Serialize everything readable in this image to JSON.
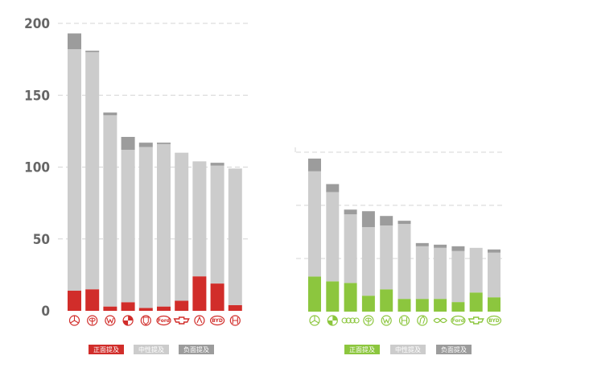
{
  "colors": {
    "positive_left": "#d12d2a",
    "positive_right": "#8cc63e",
    "neutral": "#cccccc",
    "negative": "#9c9c9c",
    "grid": "#d4d4d4",
    "axis_text": "#666666"
  },
  "chart_data": [
    {
      "type": "bar",
      "stacked": true,
      "title": "",
      "xlabel": "",
      "ylabel": "",
      "ylim": [
        0,
        200
      ],
      "yticks": [
        "0",
        "50",
        "100",
        "150",
        "200"
      ],
      "grid": true,
      "legend_position": "bottom",
      "categories": [
        "mercedes-benz-logo",
        "toyota-logo",
        "volkswagen-logo",
        "bmw-logo",
        "porsche-logo",
        "ford-logo",
        "chevrolet-logo",
        "geely-logo",
        "byd-logo",
        "honda-logo"
      ],
      "brand_labels": [
        "",
        "",
        "",
        "",
        "",
        "Ford",
        "",
        "",
        "BYD",
        ""
      ],
      "series": [
        {
          "name": "正面提及",
          "color": "#d12d2a",
          "values": [
            14,
            15,
            3,
            6,
            2,
            3,
            7,
            24,
            19,
            4
          ]
        },
        {
          "name": "中性提及",
          "color": "#cccccc",
          "values": [
            168,
            165,
            133,
            106,
            112,
            113,
            103,
            80,
            82,
            95
          ]
        },
        {
          "name": "负面提及",
          "color": "#9c9c9c",
          "values": [
            11,
            1,
            2,
            9,
            3,
            1,
            0,
            0,
            2,
            0
          ]
        }
      ]
    },
    {
      "type": "bar",
      "stacked": true,
      "title": "",
      "xlabel": "",
      "ylabel": "",
      "ylim": [
        0,
        100
      ],
      "grid": true,
      "legend_position": "bottom",
      "categories": [
        "mercedes-benz-logo",
        "bmw-logo",
        "audi-logo",
        "toyota-logo",
        "volkswagen-logo",
        "honda-logo",
        "peugeot-logo",
        "chery-logo",
        "ford-logo",
        "chevrolet-logo",
        "byd-logo"
      ],
      "brand_labels": [
        "",
        "",
        "",
        "",
        "",
        "",
        "",
        "",
        "Ford",
        "",
        "BYD"
      ],
      "series": [
        {
          "name": "正面提及",
          "color": "#8cc63e",
          "values": [
            22,
            19,
            18,
            10,
            14,
            8,
            8,
            8,
            6,
            12,
            9
          ]
        },
        {
          "name": "中性提及",
          "color": "#cccccc",
          "values": [
            66,
            56,
            43,
            43,
            40,
            47,
            33,
            32,
            32,
            28,
            28
          ]
        },
        {
          "name": "负面提及",
          "color": "#9c9c9c",
          "values": [
            8,
            5,
            3,
            10,
            6,
            2,
            2,
            2,
            3,
            0,
            2
          ]
        }
      ]
    }
  ]
}
